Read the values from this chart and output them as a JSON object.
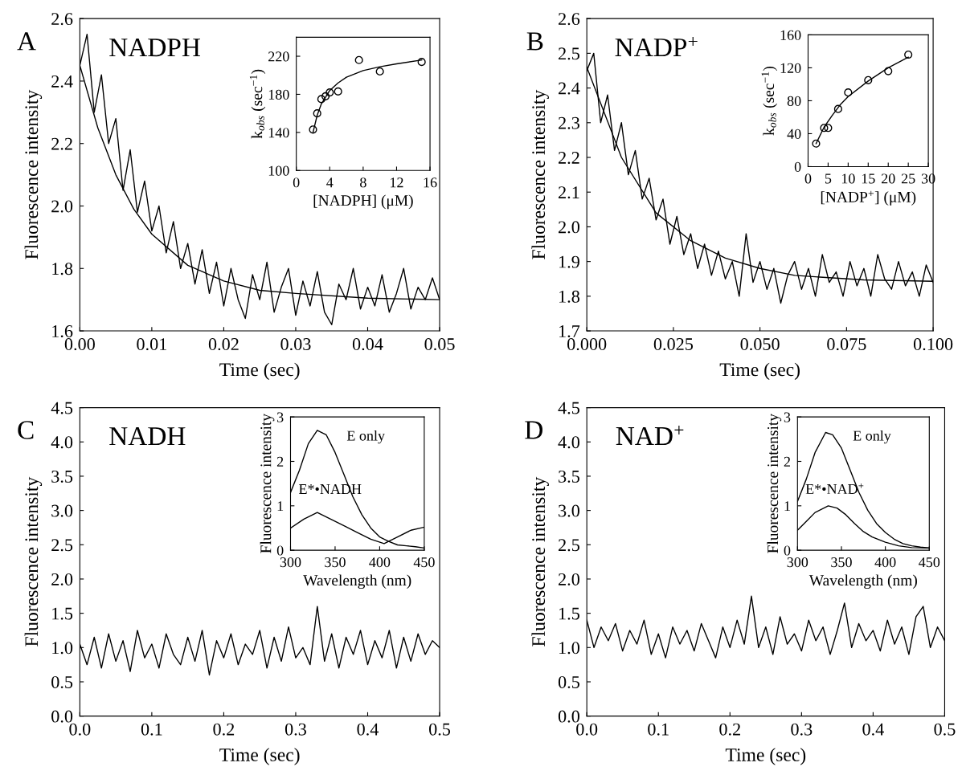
{
  "chart_data": [
    {
      "type": "line",
      "title": "A",
      "xlabel": "Time (sec)",
      "ylabel": "Fluorescence intensity",
      "annotations": [
        "NADPH"
      ],
      "xlim": [
        0,
        0.05
      ],
      "ylim": [
        1.6,
        2.6
      ],
      "xticks": [
        {
          "value": 0,
          "label": "0.00"
        },
        {
          "value": 0.01,
          "label": "0.01"
        },
        {
          "value": 0.02,
          "label": "0.02"
        },
        {
          "value": 0.03,
          "label": "0.03"
        },
        {
          "value": 0.04,
          "label": "0.04"
        },
        {
          "value": 0.05,
          "label": "0.05"
        }
      ],
      "yticks": [
        {
          "value": 1.6,
          "label": "1.6"
        },
        {
          "value": 1.8,
          "label": "1.8"
        },
        {
          "value": 2.0,
          "label": "2.0"
        },
        {
          "value": 2.2,
          "label": "2.2"
        },
        {
          "value": 2.4,
          "label": "2.4"
        },
        {
          "value": 2.6,
          "label": "2.6"
        }
      ],
      "grid": false,
      "legend": false,
      "marker": "none",
      "series": [
        {
          "color": "#000000",
          "x": [
            0,
            0.001,
            0.002,
            0.003,
            0.004,
            0.005,
            0.006,
            0.007,
            0.008,
            0.009,
            0.01,
            0.011,
            0.012,
            0.013,
            0.014,
            0.015,
            0.016,
            0.017,
            0.018,
            0.019,
            0.02,
            0.021,
            0.022,
            0.023,
            0.024,
            0.025,
            0.026,
            0.027,
            0.028,
            0.029,
            0.03,
            0.031,
            0.032,
            0.033,
            0.034,
            0.035,
            0.036,
            0.037,
            0.038,
            0.039,
            0.04,
            0.041,
            0.042,
            0.043,
            0.044,
            0.045,
            0.046,
            0.047,
            0.048,
            0.049,
            0.05
          ],
          "values": [
            2.45,
            2.55,
            2.3,
            2.42,
            2.2,
            2.28,
            2.05,
            2.18,
            1.98,
            2.08,
            1.92,
            2.0,
            1.85,
            1.95,
            1.8,
            1.88,
            1.75,
            1.86,
            1.72,
            1.82,
            1.68,
            1.8,
            1.7,
            1.64,
            1.78,
            1.7,
            1.82,
            1.66,
            1.74,
            1.8,
            1.65,
            1.76,
            1.68,
            1.79,
            1.66,
            1.62,
            1.75,
            1.7,
            1.8,
            1.67,
            1.74,
            1.68,
            1.78,
            1.66,
            1.72,
            1.8,
            1.67,
            1.74,
            1.7,
            1.77,
            1.7
          ]
        },
        {
          "color": "#000000",
          "x": [
            0,
            0.0025,
            0.005,
            0.0075,
            0.01,
            0.015,
            0.02,
            0.025,
            0.03,
            0.04,
            0.05
          ],
          "values": [
            2.45,
            2.25,
            2.1,
            1.99,
            1.91,
            1.81,
            1.76,
            1.73,
            1.72,
            1.705,
            1.7
          ]
        }
      ]
    },
    {
      "type": "scatter",
      "xlabel": "[NADPH] (μM)",
      "ylabel": "k$_{obs}$ (sec$^{−1}$)",
      "xlim": [
        0,
        16
      ],
      "ylim": [
        100,
        240
      ],
      "xticks": [
        0,
        4,
        8,
        12,
        16
      ],
      "yticks": [
        100,
        140,
        180,
        220
      ],
      "grid": false,
      "legend": false,
      "marker": "circle",
      "x": [
        2,
        2.5,
        3,
        3.5,
        4,
        5,
        7.5,
        10,
        15
      ],
      "values": [
        143,
        160,
        175,
        178,
        182,
        183,
        216,
        204,
        214
      ],
      "series": [
        {
          "type": "line",
          "marker": "none",
          "color": "#000000",
          "x": [
            2,
            2.5,
            3,
            4,
            5,
            6,
            8,
            10,
            12,
            15
          ],
          "values": [
            140,
            158,
            170,
            184,
            192,
            198,
            205,
            209,
            212,
            216
          ]
        }
      ]
    },
    {
      "type": "line",
      "title": "B",
      "xlabel": "Time (sec)",
      "ylabel": "Fluorescence intensity",
      "annotations": [
        "NADP$^{+}$"
      ],
      "xlim": [
        0,
        0.1
      ],
      "ylim": [
        1.7,
        2.6
      ],
      "xticks": [
        {
          "value": 0,
          "label": "0.000"
        },
        {
          "value": 0.025,
          "label": "0.025"
        },
        {
          "value": 0.05,
          "label": "0.050"
        },
        {
          "value": 0.075,
          "label": "0.075"
        },
        {
          "value": 0.1,
          "label": "0.100"
        }
      ],
      "yticks": [
        1.7,
        1.8,
        1.9,
        {
          "value": 2.0,
          "label": "2.0"
        },
        2.1,
        2.2,
        2.3,
        2.4,
        2.5,
        2.6
      ],
      "grid": false,
      "legend": false,
      "marker": "none",
      "series": [
        {
          "color": "#000000",
          "x": [
            0,
            0.002,
            0.004,
            0.006,
            0.008,
            0.01,
            0.012,
            0.014,
            0.016,
            0.018,
            0.02,
            0.022,
            0.024,
            0.026,
            0.028,
            0.03,
            0.032,
            0.034,
            0.036,
            0.038,
            0.04,
            0.042,
            0.044,
            0.046,
            0.048,
            0.05,
            0.052,
            0.054,
            0.056,
            0.058,
            0.06,
            0.062,
            0.064,
            0.066,
            0.068,
            0.07,
            0.072,
            0.074,
            0.076,
            0.078,
            0.08,
            0.082,
            0.084,
            0.086,
            0.088,
            0.09,
            0.092,
            0.094,
            0.096,
            0.098,
            0.1
          ],
          "values": [
            2.45,
            2.5,
            2.3,
            2.38,
            2.22,
            2.3,
            2.15,
            2.22,
            2.08,
            2.14,
            2.02,
            2.08,
            1.95,
            2.03,
            1.92,
            1.98,
            1.88,
            1.95,
            1.86,
            1.93,
            1.85,
            1.9,
            1.8,
            1.98,
            1.84,
            1.9,
            1.82,
            1.88,
            1.78,
            1.86,
            1.9,
            1.82,
            1.88,
            1.8,
            1.92,
            1.84,
            1.87,
            1.8,
            1.9,
            1.83,
            1.88,
            1.8,
            1.92,
            1.85,
            1.82,
            1.9,
            1.83,
            1.87,
            1.8,
            1.89,
            1.84
          ]
        },
        {
          "color": "#000000",
          "x": [
            0,
            0.01,
            0.02,
            0.03,
            0.04,
            0.05,
            0.06,
            0.08,
            0.1
          ],
          "values": [
            2.46,
            2.2,
            2.04,
            1.96,
            1.91,
            1.88,
            1.86,
            1.847,
            1.843
          ]
        }
      ]
    },
    {
      "type": "scatter",
      "xlabel": "[NADP$^{+}$] (μM)",
      "ylabel": "k$_{obs}$ (sec$^{−1}$)",
      "xlim": [
        0,
        30
      ],
      "ylim": [
        0,
        160
      ],
      "xticks": [
        0,
        5,
        10,
        15,
        20,
        25,
        30
      ],
      "yticks": [
        0,
        40,
        80,
        120,
        160
      ],
      "grid": false,
      "legend": false,
      "marker": "circle",
      "x": [
        2,
        4,
        5,
        7.5,
        10,
        15,
        20,
        25
      ],
      "values": [
        28,
        47,
        47,
        70,
        90,
        105,
        116,
        136
      ],
      "series": [
        {
          "type": "line",
          "marker": "none",
          "color": "#000000",
          "x": [
            2,
            4,
            6,
            8,
            10,
            15,
            20,
            25
          ],
          "values": [
            28,
            48,
            62,
            75,
            85,
            104,
            120,
            133
          ]
        }
      ]
    },
    {
      "type": "line",
      "title": "C",
      "xlabel": "Time (sec)",
      "ylabel": "Fluorescence intensity",
      "annotations": [
        "NADH"
      ],
      "xlim": [
        0,
        0.5
      ],
      "ylim": [
        0,
        4.5
      ],
      "xticks": [
        {
          "value": 0,
          "label": "0.0"
        },
        0.1,
        0.2,
        0.3,
        0.4,
        0.5
      ],
      "yticks": [
        {
          "value": 0,
          "label": "0.0"
        },
        0.5,
        {
          "value": 1,
          "label": "1.0"
        },
        1.5,
        {
          "value": 2,
          "label": "2.0"
        },
        2.5,
        {
          "value": 3,
          "label": "3.0"
        },
        3.5,
        {
          "value": 4,
          "label": "4.0"
        },
        4.5
      ],
      "grid": false,
      "legend": false,
      "marker": "none",
      "series": [
        {
          "color": "#000000",
          "x": [
            0,
            0.01,
            0.02,
            0.03,
            0.04,
            0.05,
            0.06,
            0.07,
            0.08,
            0.09,
            0.1,
            0.11,
            0.12,
            0.13,
            0.14,
            0.15,
            0.16,
            0.17,
            0.18,
            0.19,
            0.2,
            0.21,
            0.22,
            0.23,
            0.24,
            0.25,
            0.26,
            0.27,
            0.28,
            0.29,
            0.3,
            0.31,
            0.32,
            0.33,
            0.34,
            0.35,
            0.36,
            0.37,
            0.38,
            0.39,
            0.4,
            0.41,
            0.42,
            0.43,
            0.44,
            0.45,
            0.46,
            0.47,
            0.48,
            0.49,
            0.5
          ],
          "values": [
            1.05,
            0.75,
            1.15,
            0.7,
            1.2,
            0.8,
            1.1,
            0.65,
            1.25,
            0.85,
            1.05,
            0.7,
            1.2,
            0.9,
            0.75,
            1.15,
            0.8,
            1.25,
            0.6,
            1.1,
            0.85,
            1.2,
            0.75,
            1.05,
            0.9,
            1.25,
            0.7,
            1.15,
            0.8,
            1.3,
            0.85,
            1.0,
            0.75,
            1.6,
            0.8,
            1.2,
            0.7,
            1.15,
            0.9,
            1.25,
            0.75,
            1.1,
            0.85,
            1.25,
            0.7,
            1.15,
            0.8,
            1.2,
            0.9,
            1.1,
            1.0
          ]
        }
      ]
    },
    {
      "type": "line",
      "xlabel": "Wavelength (nm)",
      "ylabel": "Fluorescence intensity",
      "xlim": [
        300,
        450
      ],
      "ylim": [
        0,
        3
      ],
      "xticks": [
        300,
        350,
        400,
        450
      ],
      "yticks": [
        0,
        1,
        2,
        3
      ],
      "grid": false,
      "legend": false,
      "marker": "none",
      "annotations": [
        "E only",
        "E*•NADH"
      ],
      "series": [
        {
          "color": "#000000",
          "x": [
            300,
            310,
            320,
            330,
            340,
            350,
            360,
            370,
            380,
            390,
            400,
            410,
            420,
            430,
            440,
            450
          ],
          "values": [
            1.3,
            1.8,
            2.4,
            2.7,
            2.6,
            2.2,
            1.7,
            1.2,
            0.8,
            0.5,
            0.3,
            0.2,
            0.12,
            0.1,
            0.08,
            0.05
          ]
        },
        {
          "color": "#000000",
          "x": [
            300,
            315,
            330,
            345,
            360,
            375,
            390,
            405,
            420,
            435,
            450
          ],
          "values": [
            0.5,
            0.7,
            0.85,
            0.7,
            0.55,
            0.4,
            0.25,
            0.15,
            0.3,
            0.45,
            0.52
          ]
        }
      ]
    },
    {
      "type": "line",
      "title": "D",
      "xlabel": "Time (sec)",
      "ylabel": "Fluorescence intensity",
      "annotations": [
        "NAD$^{+}$"
      ],
      "xlim": [
        0,
        0.5
      ],
      "ylim": [
        0,
        4.5
      ],
      "xticks": [
        {
          "value": 0,
          "label": "0.0"
        },
        0.1,
        0.2,
        0.3,
        0.4,
        0.5
      ],
      "yticks": [
        {
          "value": 0,
          "label": "0.0"
        },
        0.5,
        {
          "value": 1,
          "label": "1.0"
        },
        1.5,
        {
          "value": 2,
          "label": "2.0"
        },
        2.5,
        {
          "value": 3,
          "label": "3.0"
        },
        3.5,
        {
          "value": 4,
          "label": "4.0"
        },
        4.5
      ],
      "grid": false,
      "legend": false,
      "marker": "none",
      "series": [
        {
          "color": "#000000",
          "x": [
            0,
            0.01,
            0.02,
            0.03,
            0.04,
            0.05,
            0.06,
            0.07,
            0.08,
            0.09,
            0.1,
            0.11,
            0.12,
            0.13,
            0.14,
            0.15,
            0.16,
            0.17,
            0.18,
            0.19,
            0.2,
            0.21,
            0.22,
            0.23,
            0.24,
            0.25,
            0.26,
            0.27,
            0.28,
            0.29,
            0.3,
            0.31,
            0.32,
            0.33,
            0.34,
            0.35,
            0.36,
            0.37,
            0.38,
            0.39,
            0.4,
            0.41,
            0.42,
            0.43,
            0.44,
            0.45,
            0.46,
            0.47,
            0.48,
            0.49,
            0.5
          ],
          "values": [
            1.4,
            1.0,
            1.3,
            1.1,
            1.35,
            0.95,
            1.25,
            1.05,
            1.4,
            0.9,
            1.2,
            0.85,
            1.3,
            1.05,
            1.25,
            0.95,
            1.35,
            1.1,
            0.85,
            1.3,
            1.0,
            1.4,
            1.05,
            1.75,
            1.0,
            1.3,
            0.9,
            1.45,
            1.05,
            1.2,
            0.95,
            1.4,
            1.1,
            1.3,
            0.9,
            1.25,
            1.65,
            1.0,
            1.35,
            1.1,
            1.25,
            0.95,
            1.4,
            1.05,
            1.3,
            0.9,
            1.45,
            1.6,
            1.0,
            1.3,
            1.1
          ]
        }
      ]
    },
    {
      "type": "line",
      "xlabel": "Wavelength (nm)",
      "ylabel": "Fluorescence intensity",
      "xlim": [
        300,
        450
      ],
      "ylim": [
        0,
        3
      ],
      "xticks": [
        300,
        350,
        400,
        450
      ],
      "yticks": [
        0,
        1,
        2,
        3
      ],
      "grid": false,
      "legend": false,
      "marker": "none",
      "annotations": [
        "E only",
        "E*•NAD$^{+}$"
      ],
      "series": [
        {
          "color": "#000000",
          "x": [
            300,
            310,
            320,
            332,
            340,
            350,
            360,
            370,
            380,
            390,
            400,
            410,
            420,
            430,
            440,
            450
          ],
          "values": [
            1.1,
            1.6,
            2.2,
            2.65,
            2.6,
            2.3,
            1.8,
            1.3,
            0.9,
            0.6,
            0.4,
            0.25,
            0.15,
            0.1,
            0.07,
            0.05
          ]
        },
        {
          "color": "#000000",
          "x": [
            300,
            310,
            320,
            335,
            345,
            355,
            365,
            375,
            385,
            400,
            415,
            430,
            450
          ],
          "values": [
            0.45,
            0.65,
            0.85,
            1.0,
            0.95,
            0.8,
            0.6,
            0.42,
            0.3,
            0.18,
            0.1,
            0.06,
            0.05
          ]
        }
      ]
    }
  ]
}
